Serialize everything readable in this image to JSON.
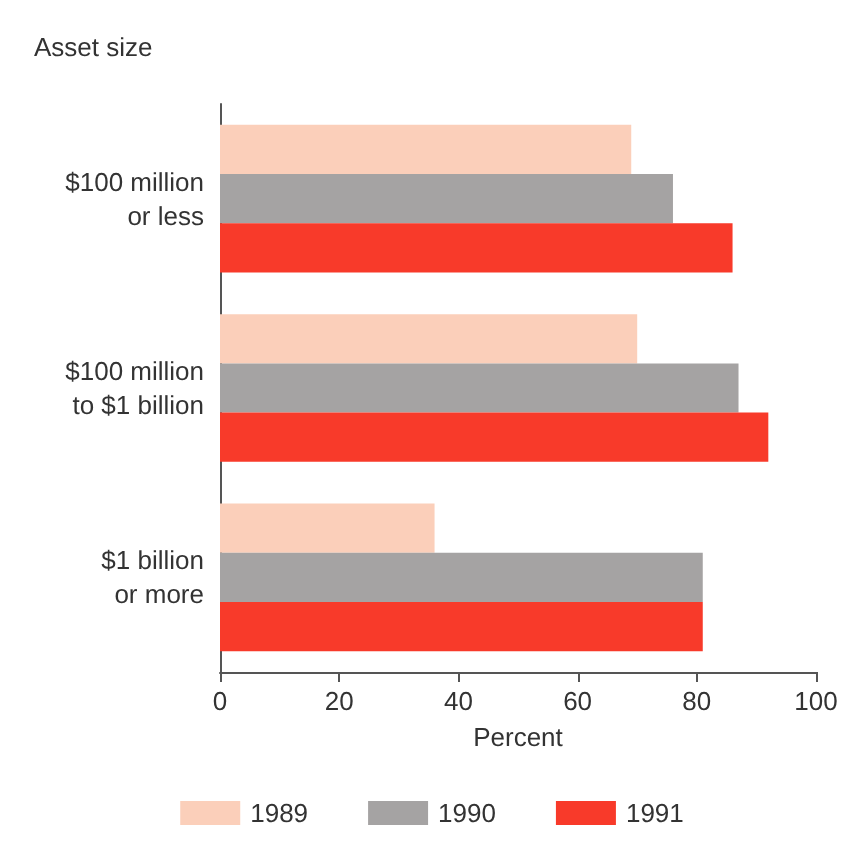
{
  "chart_data": {
    "type": "bar",
    "orientation": "horizontal",
    "ylabel": "Asset size",
    "xlabel": "Percent",
    "categories": [
      "$100 million\nor less",
      "$100 million\nto $1 billion",
      "$1 billion\nor more"
    ],
    "series": [
      {
        "name": "1989",
        "color": "#fbcfba",
        "values": [
          69,
          70,
          36
        ]
      },
      {
        "name": "1990",
        "color": "#a5a3a3",
        "values": [
          76,
          87,
          81
        ]
      },
      {
        "name": "1991",
        "color": "#f83a2a",
        "values": [
          86,
          92,
          81
        ]
      }
    ],
    "xlim": [
      0,
      100
    ],
    "xticks": [
      0,
      20,
      40,
      60,
      80,
      100
    ],
    "grid": false,
    "legend": "bottom"
  }
}
